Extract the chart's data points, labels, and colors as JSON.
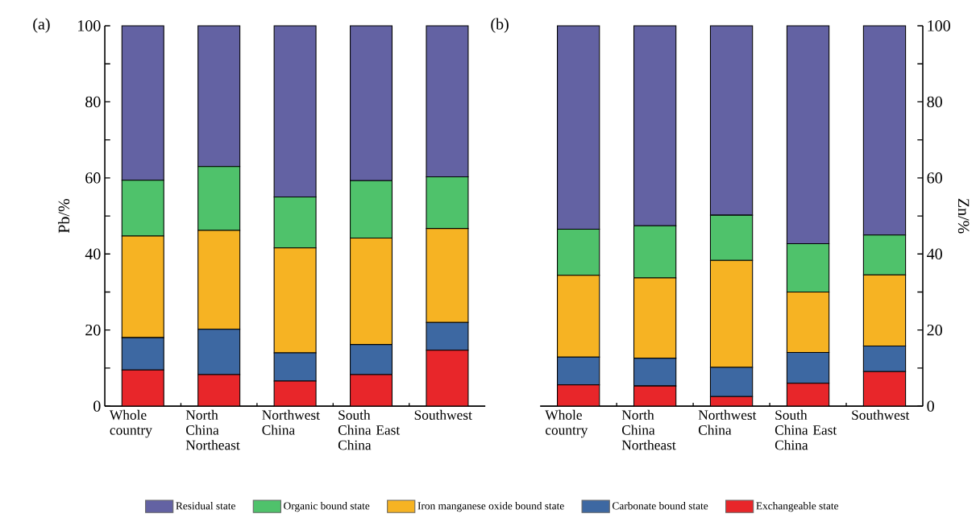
{
  "chart_data": [
    {
      "type": "bar",
      "title": "(a)",
      "ylabel": "Pb/%",
      "stacked": true,
      "legend": "bottom",
      "categories": [
        "Whole country",
        "North China Northeast",
        "Northwest China",
        "South China East China",
        "Southwest"
      ],
      "ylim": [
        0,
        100
      ],
      "yticks": [
        0,
        {
          "value": 10,
          "label": null
        },
        20,
        {
          "value": 30,
          "label": null
        },
        40,
        {
          "value": 50,
          "label": null
        },
        60,
        {
          "value": 70,
          "label": null
        },
        80,
        {
          "value": 90,
          "label": null
        },
        100
      ],
      "series": [
        {
          "name": "Exchangeable state",
          "color": "#e8262a",
          "values": [
            9.5,
            8.3,
            6.6,
            8.3,
            14.7
          ]
        },
        {
          "name": "Carbonate bound state",
          "color": "#3d68a2",
          "values": [
            8.5,
            11.9,
            7.4,
            7.9,
            7.3
          ]
        },
        {
          "name": "Iron manganese oxide bound state",
          "color": "#f6b323",
          "values": [
            26.7,
            26.0,
            27.6,
            28.0,
            24.7
          ]
        },
        {
          "name": "Organic bound state",
          "color": "#4fc26b",
          "values": [
            14.7,
            16.8,
            13.4,
            15.1,
            13.6
          ]
        },
        {
          "name": "Residual state",
          "color": "#6362a3",
          "values": [
            40.6,
            37.0,
            45.0,
            40.7,
            39.7
          ]
        }
      ]
    },
    {
      "type": "bar",
      "title": "(b)",
      "ylabel": "Zn/%",
      "stacked": true,
      "categories": [
        "Whole country",
        "North China Northeast",
        "Northwest China",
        "South China East China",
        "Southwest"
      ],
      "ylim": [
        0,
        100
      ],
      "yticks": [
        0,
        {
          "value": 10,
          "label": null
        },
        20,
        {
          "value": 30,
          "label": null
        },
        40,
        {
          "value": 50,
          "label": null
        },
        60,
        {
          "value": 70,
          "label": null
        },
        80,
        {
          "value": 90,
          "label": null
        },
        100
      ],
      "series": [
        {
          "color": "#e8262a",
          "values": [
            5.6,
            5.3,
            2.5,
            6.0,
            9.1
          ]
        },
        {
          "color": "#3d68a2",
          "values": [
            7.3,
            7.3,
            7.7,
            8.1,
            6.7
          ]
        },
        {
          "color": "#f6b323",
          "values": [
            21.5,
            21.1,
            28.1,
            15.9,
            18.7
          ]
        },
        {
          "color": "#4fc26b",
          "values": [
            12.1,
            13.7,
            11.9,
            12.7,
            10.5
          ]
        },
        {
          "color": "#6362a3",
          "values": [
            53.5,
            52.6,
            49.8,
            57.3,
            55.0
          ]
        }
      ]
    }
  ]
}
